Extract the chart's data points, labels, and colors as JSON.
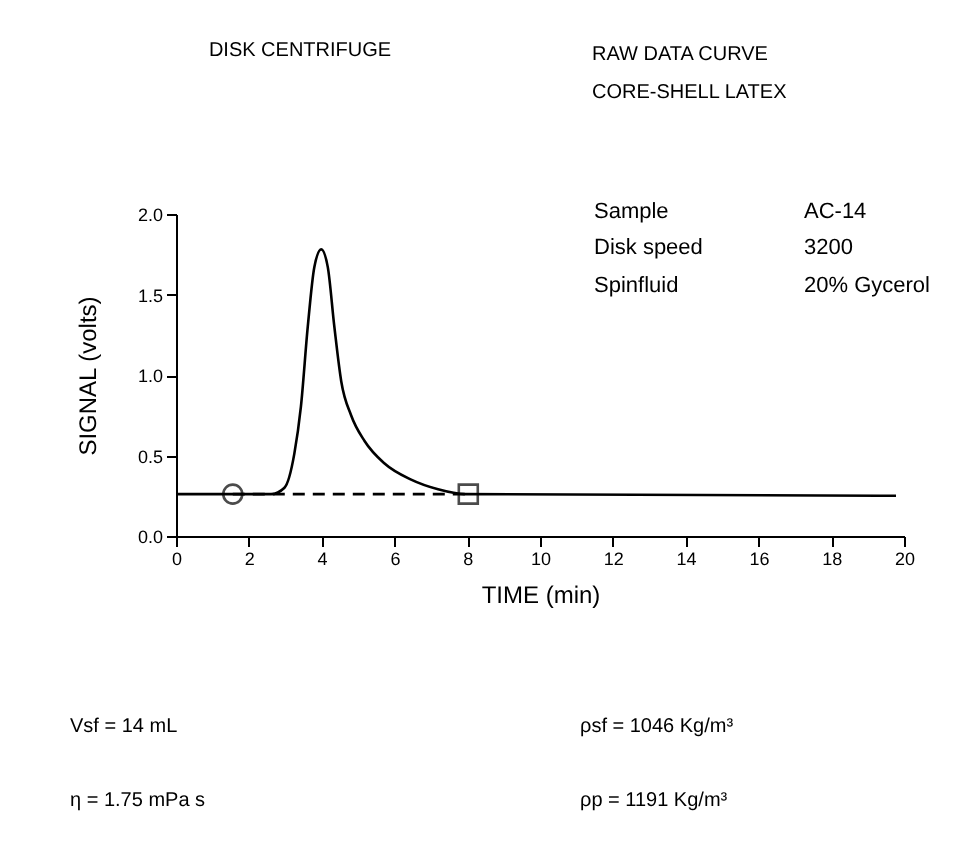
{
  "chart_data": {
    "type": "line",
    "title": "DISK CENTRIFUGE",
    "subtitle": [
      "RAW DATA CURVE",
      "CORE-SHELL LATEX"
    ],
    "xlabel": "TIME  (min)",
    "ylabel": "SIGNAL  (volts)",
    "xlim": [
      0,
      20
    ],
    "ylim": [
      0,
      2
    ],
    "xticks": [
      0,
      2,
      4,
      6,
      8,
      10,
      12,
      14,
      16,
      18,
      20
    ],
    "yticks": [
      {
        "value": 0,
        "label": "0.0"
      },
      0.5,
      {
        "value": 1,
        "label": "1.0"
      },
      1.5,
      {
        "value": 2,
        "label": "2.0"
      }
    ],
    "series": [
      {
        "type": "line",
        "color": "#000000",
        "line_style": "solid",
        "x": [
          0,
          2.61,
          2.98,
          3.25,
          3.43,
          3.62,
          3.8,
          3.99,
          4.17,
          4.35,
          4.54,
          4.81,
          5.18,
          5.73,
          6.46,
          7.2,
          7.93,
          19.78
        ],
        "values": [
          0.26,
          0.26,
          0.3,
          0.51,
          0.8,
          1.3,
          1.67,
          1.78,
          1.67,
          1.3,
          0.96,
          0.75,
          0.59,
          0.45,
          0.35,
          0.29,
          0.26,
          0.25
        ]
      },
      {
        "type": "line",
        "color": "#000000",
        "line_style": "dashed",
        "x": [
          1.56,
          8.03
        ],
        "values": [
          0.26,
          0.26
        ]
      },
      {
        "type": "scatter",
        "color": "#000000",
        "marker": "circle",
        "x": [
          1.56
        ],
        "values": [
          0.26
        ]
      },
      {
        "type": "scatter",
        "color": "#000000",
        "marker": "square",
        "x": [
          8.03
        ],
        "values": [
          0.26
        ]
      }
    ],
    "annotations": [
      "Sample",
      "AC-14",
      "Disk speed",
      "3200",
      "Spinfluid",
      "20% Gycerol",
      "Vsf = 14 mL",
      "ρsf = 1046 Kg/m³",
      "η = 1.75 mPa s",
      "ρp = 1191 Kg/m³"
    ]
  }
}
